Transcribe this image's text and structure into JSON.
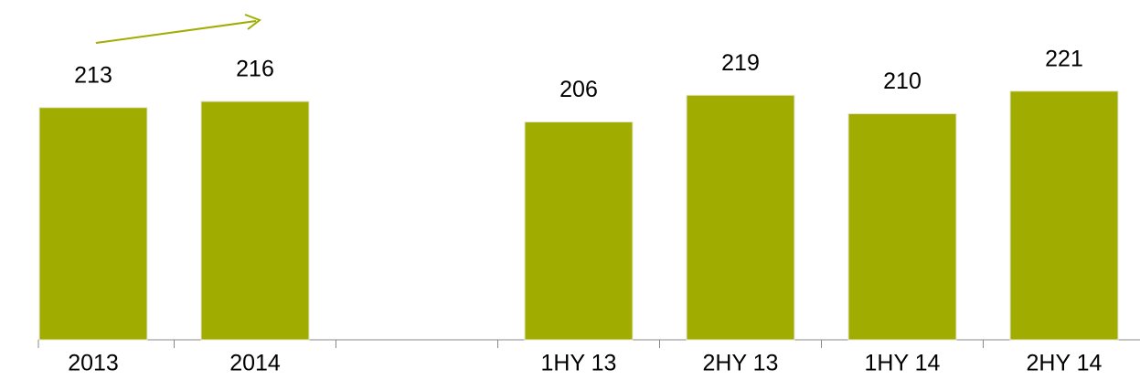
{
  "chart_data": {
    "type": "bar",
    "categories": [
      "2013",
      "2014",
      null,
      "1HY 13",
      "2HY 13",
      "1HY 14",
      "2HY 14"
    ],
    "values": [
      213,
      216,
      null,
      206,
      219,
      210,
      221
    ],
    "color": "#a0ad00",
    "ylim": [
      100,
      230
    ]
  }
}
